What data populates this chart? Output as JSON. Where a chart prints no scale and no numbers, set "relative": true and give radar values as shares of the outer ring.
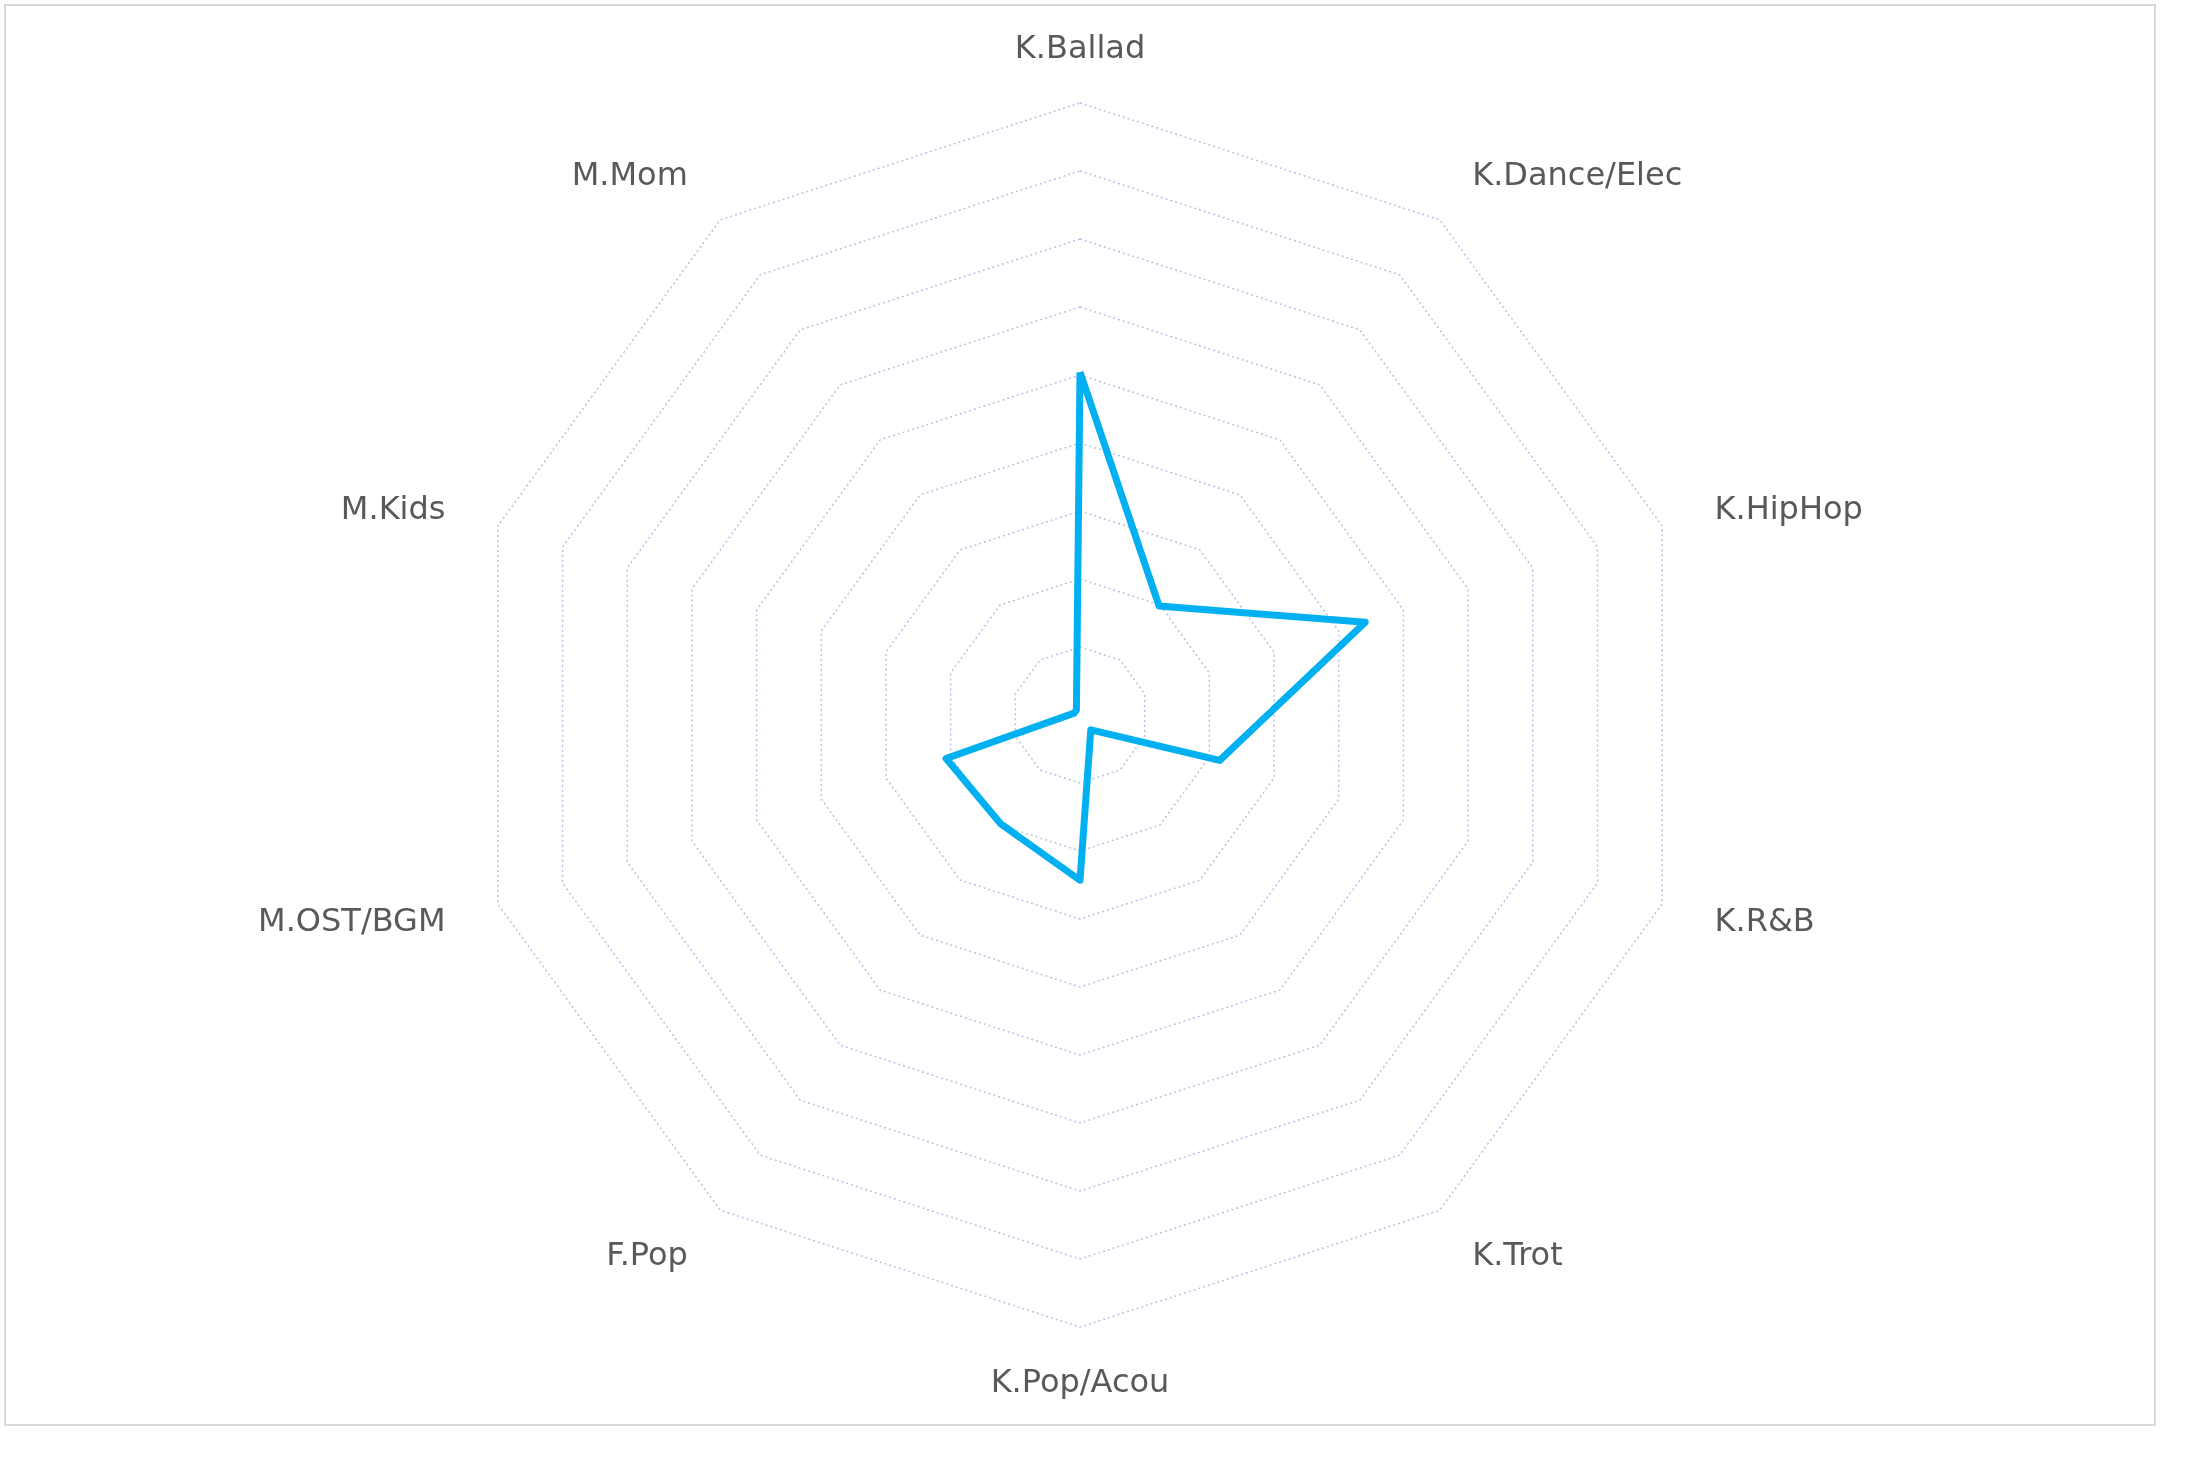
{
  "chart_data": {
    "type": "radar",
    "relative": true,
    "categories": [
      "K.Ballad",
      "K.Dance/Elec",
      "K.HipHop",
      "K.R&B",
      "K.Trot",
      "K.Pop/Acou",
      "F.Pop",
      "M.OST/BGM",
      "M.Kids",
      "M.Mom"
    ],
    "series": [
      {
        "color": "#00b0f0",
        "values": [
          0.56,
          0.22,
          0.49,
          0.24,
          0.03,
          0.27,
          0.22,
          0.23,
          0.01,
          0.01
        ]
      }
    ],
    "grid": true,
    "marker": "none",
    "line_style": "solid"
  }
}
